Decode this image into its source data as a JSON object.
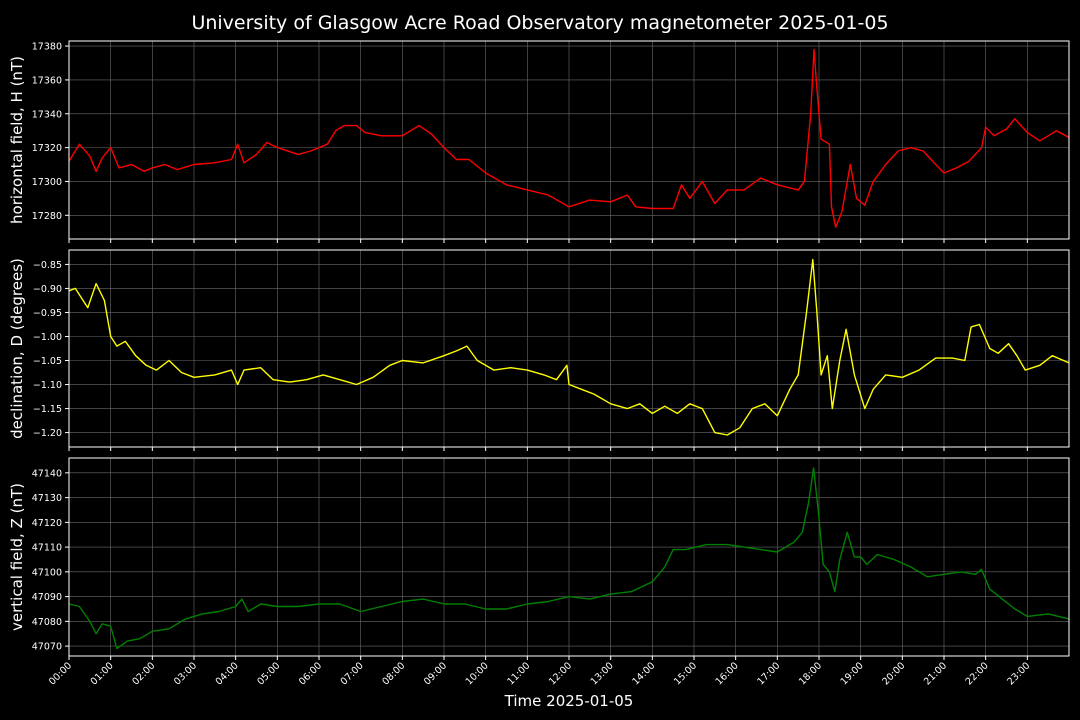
{
  "chart_data": {
    "title": "University of Glasgow Acre Road Observatory magnetometer 2025-01-05",
    "xlabel": "Time 2025-01-05",
    "x_ticks": [
      "00:00",
      "01:00",
      "02:00",
      "03:00",
      "04:00",
      "05:00",
      "06:00",
      "07:00",
      "08:00",
      "09:00",
      "10:00",
      "11:00",
      "12:00",
      "13:00",
      "14:00",
      "15:00",
      "16:00",
      "17:00",
      "18:00",
      "19:00",
      "20:00",
      "21:00",
      "22:00",
      "23:00"
    ],
    "x_range_hours": [
      0,
      24
    ],
    "grid": true,
    "panels": [
      {
        "type": "line",
        "ylabel": "horizontal field, H (nT)",
        "color": "#ff0000",
        "ylim": [
          17266,
          17383
        ],
        "yticks": [
          17280,
          17300,
          17320,
          17340,
          17360,
          17380
        ],
        "ytick_labels": [
          "17280",
          "17300",
          "17320",
          "17340",
          "17360",
          "17380"
        ],
        "points": [
          [
            0,
            17312
          ],
          [
            0.25,
            17322
          ],
          [
            0.5,
            17315
          ],
          [
            0.65,
            17306
          ],
          [
            0.8,
            17314
          ],
          [
            1,
            17320
          ],
          [
            1.2,
            17308
          ],
          [
            1.5,
            17310
          ],
          [
            1.8,
            17306
          ],
          [
            2,
            17308
          ],
          [
            2.3,
            17310
          ],
          [
            2.6,
            17307
          ],
          [
            3,
            17310
          ],
          [
            3.5,
            17311
          ],
          [
            3.9,
            17313
          ],
          [
            4.05,
            17322
          ],
          [
            4.2,
            17311
          ],
          [
            4.5,
            17316
          ],
          [
            4.75,
            17323
          ],
          [
            5,
            17320
          ],
          [
            5.5,
            17316
          ],
          [
            5.8,
            17318
          ],
          [
            6.2,
            17322
          ],
          [
            6.4,
            17330
          ],
          [
            6.6,
            17333
          ],
          [
            6.9,
            17333
          ],
          [
            7.1,
            17329
          ],
          [
            7.5,
            17327
          ],
          [
            8,
            17327
          ],
          [
            8.4,
            17333
          ],
          [
            8.7,
            17328
          ],
          [
            9.0,
            17320
          ],
          [
            9.3,
            17313
          ],
          [
            9.6,
            17313
          ],
          [
            10,
            17305
          ],
          [
            10.5,
            17298
          ],
          [
            11,
            17295
          ],
          [
            11.5,
            17292
          ],
          [
            12,
            17285
          ],
          [
            12.5,
            17289
          ],
          [
            13,
            17288
          ],
          [
            13.4,
            17292
          ],
          [
            13.6,
            17285
          ],
          [
            14,
            17284
          ],
          [
            14.5,
            17284
          ],
          [
            14.7,
            17298
          ],
          [
            14.9,
            17290
          ],
          [
            15.2,
            17300
          ],
          [
            15.5,
            17287
          ],
          [
            15.8,
            17295
          ],
          [
            16.2,
            17295
          ],
          [
            16.6,
            17302
          ],
          [
            17,
            17298
          ],
          [
            17.5,
            17295
          ],
          [
            17.65,
            17300
          ],
          [
            17.8,
            17340
          ],
          [
            17.88,
            17378
          ],
          [
            17.95,
            17355
          ],
          [
            18.05,
            17325
          ],
          [
            18.25,
            17322
          ],
          [
            18.3,
            17285
          ],
          [
            18.4,
            17273
          ],
          [
            18.55,
            17282
          ],
          [
            18.75,
            17310
          ],
          [
            18.9,
            17290
          ],
          [
            19.1,
            17286
          ],
          [
            19.3,
            17300
          ],
          [
            19.6,
            17310
          ],
          [
            19.9,
            17318
          ],
          [
            20.2,
            17320
          ],
          [
            20.5,
            17318
          ],
          [
            20.8,
            17310
          ],
          [
            21,
            17305
          ],
          [
            21.3,
            17308
          ],
          [
            21.6,
            17312
          ],
          [
            21.9,
            17320
          ],
          [
            22.0,
            17332
          ],
          [
            22.2,
            17327
          ],
          [
            22.5,
            17331
          ],
          [
            22.7,
            17337
          ],
          [
            23,
            17329
          ],
          [
            23.3,
            17324
          ],
          [
            23.5,
            17327
          ],
          [
            23.7,
            17330
          ],
          [
            24,
            17326
          ]
        ]
      },
      {
        "type": "line",
        "ylabel": "declination, D (degrees)",
        "color": "#ffff00",
        "ylim": [
          -1.23,
          -0.82
        ],
        "yticks": [
          -1.2,
          -1.15,
          -1.1,
          -1.05,
          -1.0,
          -0.95,
          -0.9,
          -0.85
        ],
        "ytick_labels": [
          "−1.20",
          "−1.15",
          "−1.10",
          "−1.05",
          "−1.00",
          "−0.95",
          "−0.90",
          "−0.85"
        ],
        "points": [
          [
            0,
            -0.905
          ],
          [
            0.15,
            -0.9
          ],
          [
            0.3,
            -0.92
          ],
          [
            0.45,
            -0.94
          ],
          [
            0.65,
            -0.89
          ],
          [
            0.85,
            -0.925
          ],
          [
            1.0,
            -1.0
          ],
          [
            1.15,
            -1.02
          ],
          [
            1.35,
            -1.01
          ],
          [
            1.6,
            -1.04
          ],
          [
            1.85,
            -1.06
          ],
          [
            2.1,
            -1.07
          ],
          [
            2.4,
            -1.05
          ],
          [
            2.7,
            -1.075
          ],
          [
            3,
            -1.085
          ],
          [
            3.5,
            -1.08
          ],
          [
            3.9,
            -1.07
          ],
          [
            4.05,
            -1.1
          ],
          [
            4.2,
            -1.07
          ],
          [
            4.6,
            -1.065
          ],
          [
            4.9,
            -1.09
          ],
          [
            5.3,
            -1.095
          ],
          [
            5.7,
            -1.09
          ],
          [
            6.1,
            -1.08
          ],
          [
            6.5,
            -1.09
          ],
          [
            6.9,
            -1.1
          ],
          [
            7.3,
            -1.085
          ],
          [
            7.7,
            -1.06
          ],
          [
            8,
            -1.05
          ],
          [
            8.5,
            -1.055
          ],
          [
            9,
            -1.04
          ],
          [
            9.3,
            -1.03
          ],
          [
            9.55,
            -1.02
          ],
          [
            9.8,
            -1.05
          ],
          [
            10.2,
            -1.07
          ],
          [
            10.6,
            -1.065
          ],
          [
            11,
            -1.07
          ],
          [
            11.4,
            -1.08
          ],
          [
            11.7,
            -1.09
          ],
          [
            11.95,
            -1.06
          ],
          [
            12.0,
            -1.1
          ],
          [
            12.3,
            -1.11
          ],
          [
            12.6,
            -1.12
          ],
          [
            13,
            -1.14
          ],
          [
            13.4,
            -1.15
          ],
          [
            13.7,
            -1.14
          ],
          [
            14,
            -1.16
          ],
          [
            14.3,
            -1.145
          ],
          [
            14.6,
            -1.16
          ],
          [
            14.9,
            -1.14
          ],
          [
            15.2,
            -1.15
          ],
          [
            15.5,
            -1.2
          ],
          [
            15.8,
            -1.205
          ],
          [
            16.1,
            -1.19
          ],
          [
            16.4,
            -1.15
          ],
          [
            16.7,
            -1.14
          ],
          [
            17.0,
            -1.165
          ],
          [
            17.3,
            -1.11
          ],
          [
            17.5,
            -1.08
          ],
          [
            17.7,
            -0.95
          ],
          [
            17.85,
            -0.84
          ],
          [
            17.95,
            -0.95
          ],
          [
            18.05,
            -1.08
          ],
          [
            18.2,
            -1.04
          ],
          [
            18.32,
            -1.15
          ],
          [
            18.5,
            -1.05
          ],
          [
            18.65,
            -0.985
          ],
          [
            18.85,
            -1.08
          ],
          [
            19.1,
            -1.15
          ],
          [
            19.3,
            -1.11
          ],
          [
            19.6,
            -1.08
          ],
          [
            20,
            -1.085
          ],
          [
            20.4,
            -1.07
          ],
          [
            20.8,
            -1.045
          ],
          [
            21.2,
            -1.045
          ],
          [
            21.5,
            -1.05
          ],
          [
            21.65,
            -0.98
          ],
          [
            21.85,
            -0.975
          ],
          [
            22.1,
            -1.025
          ],
          [
            22.3,
            -1.035
          ],
          [
            22.55,
            -1.015
          ],
          [
            22.75,
            -1.04
          ],
          [
            22.95,
            -1.07
          ],
          [
            23.3,
            -1.06
          ],
          [
            23.6,
            -1.04
          ],
          [
            24,
            -1.055
          ]
        ]
      },
      {
        "type": "line",
        "ylabel": "vertical field, Z (nT)",
        "color": "#008000",
        "ylim": [
          47066,
          47146
        ],
        "yticks": [
          47070,
          47080,
          47090,
          47100,
          47110,
          47120,
          47130,
          47140
        ],
        "ytick_labels": [
          "47070",
          "47080",
          "47090",
          "47100",
          "47110",
          "47120",
          "47130",
          "47140"
        ],
        "points": [
          [
            0,
            47087
          ],
          [
            0.25,
            47086
          ],
          [
            0.5,
            47080
          ],
          [
            0.65,
            47075
          ],
          [
            0.8,
            47079
          ],
          [
            1,
            47078
          ],
          [
            1.15,
            47069
          ],
          [
            1.4,
            47072
          ],
          [
            1.7,
            47073
          ],
          [
            2,
            47076
          ],
          [
            2.4,
            47077
          ],
          [
            2.8,
            47081
          ],
          [
            3.2,
            47083
          ],
          [
            3.6,
            47084
          ],
          [
            4,
            47086
          ],
          [
            4.15,
            47089
          ],
          [
            4.3,
            47084
          ],
          [
            4.6,
            47087
          ],
          [
            5,
            47086
          ],
          [
            5.5,
            47086
          ],
          [
            6,
            47087
          ],
          [
            6.5,
            47087
          ],
          [
            7,
            47084
          ],
          [
            7.5,
            47086
          ],
          [
            8,
            47088
          ],
          [
            8.5,
            47089
          ],
          [
            9,
            47087
          ],
          [
            9.5,
            47087
          ],
          [
            10,
            47085
          ],
          [
            10.5,
            47085
          ],
          [
            11,
            47087
          ],
          [
            11.5,
            47088
          ],
          [
            12,
            47090
          ],
          [
            12.5,
            47089
          ],
          [
            13,
            47091
          ],
          [
            13.5,
            47092
          ],
          [
            14,
            47096
          ],
          [
            14.3,
            47102
          ],
          [
            14.5,
            47109
          ],
          [
            14.8,
            47109
          ],
          [
            15.3,
            47111
          ],
          [
            15.8,
            47111
          ],
          [
            16.2,
            47110
          ],
          [
            16.6,
            47109
          ],
          [
            17,
            47108
          ],
          [
            17.4,
            47112
          ],
          [
            17.6,
            47116
          ],
          [
            17.75,
            47128
          ],
          [
            17.87,
            47142
          ],
          [
            17.98,
            47125
          ],
          [
            18.1,
            47103
          ],
          [
            18.25,
            47100
          ],
          [
            18.38,
            47092
          ],
          [
            18.5,
            47105
          ],
          [
            18.68,
            47116
          ],
          [
            18.85,
            47106
          ],
          [
            19,
            47106
          ],
          [
            19.15,
            47103
          ],
          [
            19.4,
            47107
          ],
          [
            19.8,
            47105
          ],
          [
            20.2,
            47102
          ],
          [
            20.6,
            47098
          ],
          [
            21,
            47099
          ],
          [
            21.4,
            47100
          ],
          [
            21.75,
            47099
          ],
          [
            21.9,
            47101
          ],
          [
            22.1,
            47093
          ],
          [
            22.4,
            47089
          ],
          [
            22.7,
            47085
          ],
          [
            23,
            47082
          ],
          [
            23.5,
            47083
          ],
          [
            24,
            47081
          ]
        ]
      }
    ]
  }
}
